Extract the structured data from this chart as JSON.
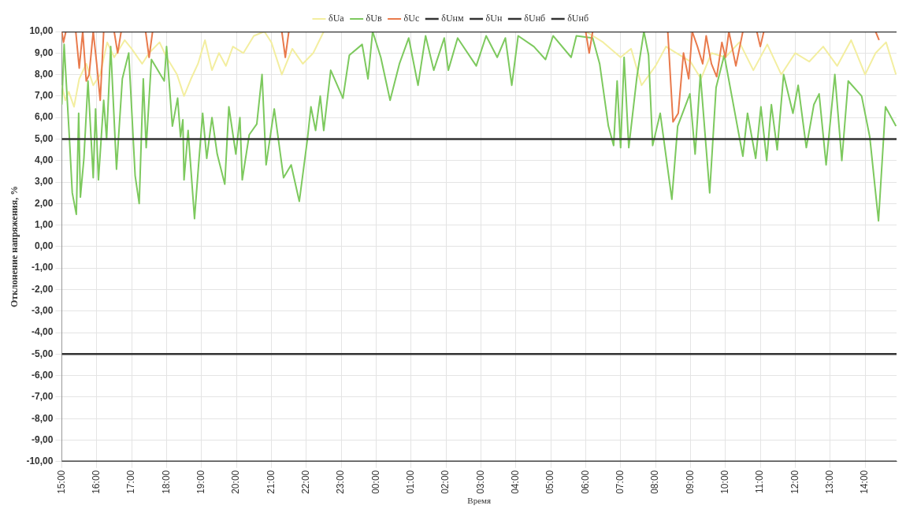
{
  "chart_data": {
    "type": "line",
    "xlabel": "Время",
    "ylabel": "Отклонение напряжения, %",
    "legend": "top",
    "grid": true,
    "marker": "none",
    "line_style": "solid",
    "xlim": [
      "2000-01-01T15:00",
      "2000-01-02T14:54"
    ],
    "xticks": [
      {
        "value": "2000-01-01T15:00",
        "label": "15:00"
      },
      {
        "value": "2000-01-01T16:00",
        "label": "16:00"
      },
      {
        "value": "2000-01-01T17:00",
        "label": "17:00"
      },
      {
        "value": "2000-01-01T18:00",
        "label": "18:00"
      },
      {
        "value": "2000-01-01T19:00",
        "label": "19:00"
      },
      {
        "value": "2000-01-01T20:00",
        "label": "20:00"
      },
      {
        "value": "2000-01-01T21:00",
        "label": "21:00"
      },
      {
        "value": "2000-01-01T22:00",
        "label": "22:00"
      },
      {
        "value": "2000-01-01T23:00",
        "label": "23:00"
      },
      {
        "value": "2000-01-02T00:00",
        "label": "00:00"
      },
      {
        "value": "2000-01-02T01:00",
        "label": "01:00"
      },
      {
        "value": "2000-01-02T02:00",
        "label": "02:00"
      },
      {
        "value": "2000-01-02T03:00",
        "label": "03:00"
      },
      {
        "value": "2000-01-02T04:00",
        "label": "04:00"
      },
      {
        "value": "2000-01-02T05:00",
        "label": "05:00"
      },
      {
        "value": "2000-01-02T06:00",
        "label": "06:00"
      },
      {
        "value": "2000-01-02T07:00",
        "label": "07:00"
      },
      {
        "value": "2000-01-02T08:00",
        "label": "08:00"
      },
      {
        "value": "2000-01-02T09:00",
        "label": "09:00"
      },
      {
        "value": "2000-01-02T10:00",
        "label": "10:00"
      },
      {
        "value": "2000-01-02T11:00",
        "label": "11:00"
      },
      {
        "value": "2000-01-02T12:00",
        "label": "12:00"
      },
      {
        "value": "2000-01-02T13:00",
        "label": "13:00"
      },
      {
        "value": "2000-01-02T14:00",
        "label": "14:00"
      }
    ],
    "ylim": [
      -10,
      10
    ],
    "yticks": [
      {
        "value": 10,
        "label": "10,00"
      },
      {
        "value": 9,
        "label": "9,00"
      },
      {
        "value": 8,
        "label": "8,00"
      },
      {
        "value": 7,
        "label": "7,00"
      },
      {
        "value": 6,
        "label": "6,00"
      },
      {
        "value": 5,
        "label": "5,00"
      },
      {
        "value": 4,
        "label": "4,00"
      },
      {
        "value": 3,
        "label": "3,00"
      },
      {
        "value": 2,
        "label": "2,00"
      },
      {
        "value": 1,
        "label": "1,00"
      },
      {
        "value": 0,
        "label": "0,00"
      },
      {
        "value": -1,
        "label": "-1,00"
      },
      {
        "value": -2,
        "label": "-2,00"
      },
      {
        "value": -3,
        "label": "-3,00"
      },
      {
        "value": -4,
        "label": "-4,00"
      },
      {
        "value": -5,
        "label": "-5,00"
      },
      {
        "value": -6,
        "label": "-6,00"
      },
      {
        "value": -7,
        "label": "-7,00"
      },
      {
        "value": -8,
        "label": "-8,00"
      },
      {
        "value": -9,
        "label": "-9,00"
      },
      {
        "value": -10,
        "label": "-10,00"
      }
    ],
    "series": [
      {
        "name": "δUa",
        "color": "#f3eea0",
        "x": [
          "2000-01-01T15:00",
          "2000-01-01T15:06",
          "2000-01-01T15:12",
          "2000-01-01T15:21",
          "2000-01-01T15:30",
          "2000-01-01T15:42",
          "2000-01-01T15:54",
          "2000-01-01T16:06",
          "2000-01-01T16:18",
          "2000-01-01T16:30",
          "2000-01-01T16:48",
          "2000-01-01T17:00",
          "2000-01-01T17:18",
          "2000-01-01T17:30",
          "2000-01-01T17:48",
          "2000-01-01T18:00",
          "2000-01-01T18:18",
          "2000-01-01T18:30",
          "2000-01-01T18:42",
          "2000-01-01T18:54",
          "2000-01-01T19:06",
          "2000-01-01T19:18",
          "2000-01-01T19:30",
          "2000-01-01T19:42",
          "2000-01-01T19:54",
          "2000-01-01T20:12",
          "2000-01-01T20:30",
          "2000-01-01T20:48",
          "2000-01-01T21:00",
          "2000-01-01T21:18",
          "2000-01-01T21:36",
          "2000-01-01T21:54",
          "2000-01-01T22:12",
          "2000-01-01T22:30",
          "2000-01-01T23:00",
          "2000-01-02T00:00",
          "2000-01-02T02:00",
          "2000-01-02T04:00",
          "2000-01-02T06:00",
          "2000-01-02T06:30",
          "2000-01-02T07:00",
          "2000-01-02T07:18",
          "2000-01-02T07:36",
          "2000-01-02T08:00",
          "2000-01-02T08:18",
          "2000-01-02T08:36",
          "2000-01-02T09:00",
          "2000-01-02T09:18",
          "2000-01-02T09:36",
          "2000-01-02T10:00",
          "2000-01-02T10:24",
          "2000-01-02T10:48",
          "2000-01-02T11:12",
          "2000-01-02T11:36",
          "2000-01-02T12:00",
          "2000-01-02T12:24",
          "2000-01-02T12:48",
          "2000-01-02T13:12",
          "2000-01-02T13:36",
          "2000-01-02T14:00",
          "2000-01-02T14:18",
          "2000-01-02T14:36",
          "2000-01-02T14:53"
        ],
        "values": [
          7.5,
          6.8,
          7.2,
          6.5,
          7.8,
          8.5,
          7.5,
          8.0,
          9.5,
          8.8,
          9.6,
          9.2,
          8.5,
          9.0,
          9.5,
          8.8,
          8.0,
          7.0,
          7.8,
          8.5,
          9.6,
          8.2,
          9.0,
          8.4,
          9.3,
          9.0,
          9.8,
          10,
          9.5,
          8.0,
          9.2,
          8.5,
          9.0,
          10,
          10,
          10,
          10,
          10,
          10,
          9.5,
          8.8,
          9.2,
          7.5,
          8.4,
          9.3,
          9.0,
          8.6,
          7.8,
          9.0,
          8.8,
          9.5,
          8.2,
          9.4,
          8.0,
          9.0,
          8.6,
          9.3,
          8.4,
          9.6,
          8.0,
          9.0,
          9.5,
          8.0
        ]
      },
      {
        "name": "δUв",
        "color": "#7dc95e",
        "x": [
          "2000-01-01T15:00",
          "2000-01-01T15:04",
          "2000-01-01T15:13",
          "2000-01-01T15:18",
          "2000-01-01T15:25",
          "2000-01-01T15:29",
          "2000-01-01T15:32",
          "2000-01-01T15:38",
          "2000-01-01T15:45",
          "2000-01-01T15:54",
          "2000-01-01T15:58",
          "2000-01-01T16:03",
          "2000-01-01T16:12",
          "2000-01-01T16:17",
          "2000-01-01T16:24",
          "2000-01-01T16:34",
          "2000-01-01T16:44",
          "2000-01-01T16:55",
          "2000-01-01T17:06",
          "2000-01-01T17:13",
          "2000-01-01T17:20",
          "2000-01-01T17:25",
          "2000-01-01T17:34",
          "2000-01-01T17:56",
          "2000-01-01T18:00",
          "2000-01-01T18:10",
          "2000-01-01T18:19",
          "2000-01-01T18:24",
          "2000-01-01T18:28",
          "2000-01-01T18:30",
          "2000-01-01T18:37",
          "2000-01-01T18:48",
          "2000-01-01T18:55",
          "2000-01-01T19:02",
          "2000-01-01T19:09",
          "2000-01-01T19:18",
          "2000-01-01T19:27",
          "2000-01-01T19:40",
          "2000-01-01T19:47",
          "2000-01-01T19:59",
          "2000-01-01T20:06",
          "2000-01-01T20:10",
          "2000-01-01T20:22",
          "2000-01-01T20:35",
          "2000-01-01T20:44",
          "2000-01-01T20:51",
          "2000-01-01T21:05",
          "2000-01-01T21:21",
          "2000-01-01T21:34",
          "2000-01-01T21:48",
          "2000-01-01T22:02",
          "2000-01-01T22:08",
          "2000-01-01T22:16",
          "2000-01-01T22:24",
          "2000-01-01T22:30",
          "2000-01-01T22:42",
          "2000-01-01T23:03",
          "2000-01-01T23:14",
          "2000-01-01T23:36",
          "2000-01-01T23:46",
          "2000-01-01T23:54",
          "2000-01-02T00:08",
          "2000-01-02T00:24",
          "2000-01-02T00:40",
          "2000-01-02T00:56",
          "2000-01-02T01:12",
          "2000-01-02T01:25",
          "2000-01-02T01:39",
          "2000-01-02T01:57",
          "2000-01-02T02:04",
          "2000-01-02T02:20",
          "2000-01-02T02:52",
          "2000-01-02T03:09",
          "2000-01-02T03:28",
          "2000-01-02T03:42",
          "2000-01-02T03:53",
          "2000-01-02T04:04",
          "2000-01-02T04:31",
          "2000-01-02T04:51",
          "2000-01-02T05:04",
          "2000-01-02T05:35",
          "2000-01-02T05:44",
          "2000-01-02T06:12",
          "2000-01-02T06:24",
          "2000-01-02T06:39",
          "2000-01-02T06:48",
          "2000-01-02T06:54",
          "2000-01-02T07:00",
          "2000-01-02T07:06",
          "2000-01-02T07:14",
          "2000-01-02T07:28",
          "2000-01-02T07:40",
          "2000-01-02T07:48",
          "2000-01-02T07:55",
          "2000-01-02T08:08",
          "2000-01-02T08:28",
          "2000-01-02T08:38",
          "2000-01-02T08:59",
          "2000-01-02T09:08",
          "2000-01-02T09:17",
          "2000-01-02T09:33",
          "2000-01-02T09:44",
          "2000-01-02T09:58",
          "2000-01-02T10:11",
          "2000-01-02T10:30",
          "2000-01-02T10:38",
          "2000-01-02T10:52",
          "2000-01-02T11:01",
          "2000-01-02T11:11",
          "2000-01-02T11:19",
          "2000-01-02T11:29",
          "2000-01-02T11:40",
          "2000-01-02T11:56",
          "2000-01-02T12:05",
          "2000-01-02T12:19",
          "2000-01-02T12:32",
          "2000-01-02T12:41",
          "2000-01-02T12:53",
          "2000-01-02T13:08",
          "2000-01-02T13:20",
          "2000-01-02T13:31",
          "2000-01-02T13:54",
          "2000-01-02T14:08",
          "2000-01-02T14:23",
          "2000-01-02T14:35",
          "2000-01-02T14:53"
        ],
        "values": [
          6.6,
          9.4,
          5.1,
          2.5,
          1.5,
          6.2,
          2.3,
          4.1,
          7.7,
          3.2,
          6.4,
          3.1,
          6.8,
          5.0,
          9.3,
          3.6,
          7.8,
          9.0,
          3.3,
          2.0,
          7.8,
          4.6,
          8.7,
          7.7,
          9.3,
          5.6,
          6.9,
          5.1,
          5.9,
          3.1,
          5.4,
          1.3,
          3.8,
          6.2,
          4.1,
          6.0,
          4.3,
          2.9,
          6.5,
          4.3,
          6.0,
          3.1,
          5.2,
          5.7,
          8.0,
          3.8,
          6.4,
          3.2,
          3.8,
          2.1,
          5.0,
          6.5,
          5.4,
          7.0,
          5.4,
          8.2,
          6.9,
          8.9,
          9.4,
          7.8,
          10,
          8.8,
          6.8,
          8.5,
          9.7,
          7.5,
          9.8,
          8.2,
          9.7,
          8.2,
          9.7,
          8.4,
          9.8,
          8.8,
          9.7,
          7.5,
          9.8,
          9.3,
          8.7,
          9.8,
          8.8,
          9.8,
          9.7,
          8.5,
          5.6,
          4.7,
          7.7,
          4.6,
          8.8,
          4.6,
          7.9,
          10,
          8.9,
          4.7,
          6.2,
          2.2,
          5.6,
          7.1,
          4.3,
          8.0,
          2.5,
          7.4,
          8.9,
          7.0,
          4.2,
          6.2,
          4.1,
          6.5,
          4.0,
          6.6,
          4.5,
          8.0,
          6.2,
          7.5,
          4.6,
          6.6,
          7.1,
          3.8,
          8.0,
          4.0,
          7.7,
          7.0,
          5.1,
          1.2,
          6.5,
          5.6
        ]
      },
      {
        "name": "δUc",
        "color": "#e97a4c",
        "x": [
          "2000-01-01T15:00",
          "2000-01-01T15:03",
          "2000-01-01T15:07",
          "2000-01-01T15:24",
          "2000-01-01T15:30",
          "2000-01-01T15:36",
          "2000-01-01T15:42",
          "2000-01-01T15:47",
          "2000-01-01T15:54",
          "2000-01-01T16:00",
          "2000-01-01T16:06",
          "2000-01-01T16:12",
          "2000-01-01T16:30",
          "2000-01-01T16:36",
          "2000-01-01T16:42",
          "2000-01-01T17:24",
          "2000-01-01T17:30",
          "2000-01-01T17:36",
          "2000-01-01T21:18",
          "2000-01-01T21:24",
          "2000-01-01T21:30",
          "2000-01-02T06:00",
          "2000-01-02T06:06",
          "2000-01-02T06:12",
          "2000-01-02T08:21",
          "2000-01-02T08:30",
          "2000-01-02T08:39",
          "2000-01-02T08:48",
          "2000-01-02T08:57",
          "2000-01-02T09:03",
          "2000-01-02T09:12",
          "2000-01-02T09:21",
          "2000-01-02T09:27",
          "2000-01-02T09:36",
          "2000-01-02T09:45",
          "2000-01-02T09:54",
          "2000-01-02T10:00",
          "2000-01-02T10:06",
          "2000-01-02T10:18",
          "2000-01-02T10:30",
          "2000-01-02T10:54",
          "2000-01-02T11:00",
          "2000-01-02T11:06",
          "2000-01-02T14:18",
          "2000-01-02T14:24"
        ],
        "values": [
          10,
          9.5,
          10,
          10,
          8.3,
          10,
          7.7,
          8.0,
          10,
          8.5,
          6.8,
          10,
          10,
          9.0,
          10,
          10,
          8.8,
          10,
          10,
          8.8,
          10,
          10,
          9.0,
          10,
          10,
          5.8,
          6.2,
          9.0,
          7.8,
          10,
          9.3,
          8.5,
          9.8,
          8.5,
          7.9,
          9.5,
          8.8,
          10,
          8.4,
          10,
          10,
          9.3,
          10,
          10,
          9.6
        ]
      },
      {
        "name": "δUнм",
        "color": "#333333",
        "x": [
          "2000-01-01T15:00",
          "2000-01-02T14:54"
        ],
        "values": [
          -10,
          -10
        ]
      },
      {
        "name": "δUн",
        "color": "#333333",
        "x": [
          "2000-01-01T15:00",
          "2000-01-02T14:54"
        ],
        "values": [
          -5,
          -5
        ]
      },
      {
        "name": "δUнб",
        "color": "#333333",
        "x": [
          "2000-01-01T15:00",
          "2000-01-02T14:54"
        ],
        "values": [
          5,
          5
        ]
      },
      {
        "name": "δUнб",
        "color": "#333333",
        "x": [
          "2000-01-01T15:00",
          "2000-01-02T14:54"
        ],
        "values": [
          10,
          10
        ]
      }
    ]
  }
}
